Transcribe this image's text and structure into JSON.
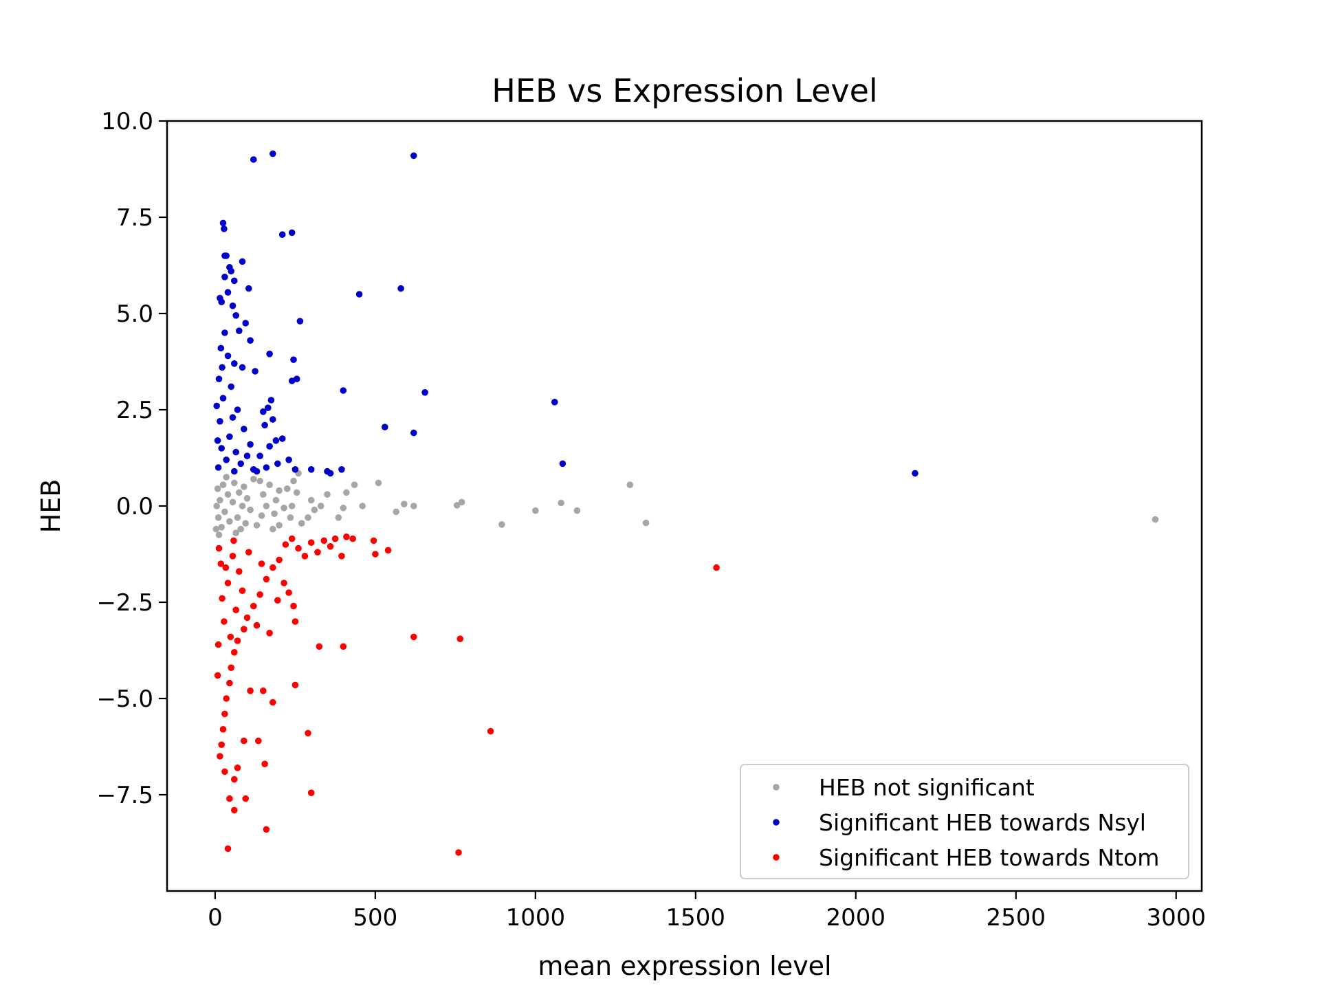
{
  "chart_data": {
    "type": "scatter",
    "title": "HEB vs Expression Level",
    "xlabel": "mean expression level",
    "ylabel": "HEB",
    "xlim": [
      -150,
      3080
    ],
    "ylim": [
      -10.0,
      10.0
    ],
    "xticks": [
      0,
      500,
      1000,
      1500,
      2000,
      2500,
      3000
    ],
    "xtick_labels": [
      "0",
      "500",
      "1000",
      "1500",
      "2000",
      "2500",
      "3000"
    ],
    "yticks": [
      -7.5,
      -5.0,
      -2.5,
      0.0,
      2.5,
      5.0,
      7.5,
      10.0
    ],
    "ytick_labels": [
      "−7.5",
      "−5.0",
      "−2.5",
      "0.0",
      "2.5",
      "5.0",
      "7.5",
      "10.0"
    ],
    "grid": false,
    "legend_position": "lower-right",
    "series": [
      {
        "name": "HEB not significant",
        "color": "#a6a6a6",
        "points": [
          [
            1295,
            0.55
          ],
          [
            1080,
            0.08
          ],
          [
            1000,
            -0.12
          ],
          [
            1130,
            -0.12
          ],
          [
            895,
            -0.48
          ],
          [
            1345,
            -0.44
          ],
          [
            2935,
            -0.35
          ],
          [
            770,
            0.1
          ],
          [
            755,
            0.02
          ],
          [
            620,
            0.0
          ],
          [
            590,
            0.05
          ],
          [
            565,
            -0.15
          ],
          [
            510,
            0.6
          ],
          [
            435,
            0.55
          ],
          [
            460,
            0.0
          ],
          [
            410,
            0.35
          ],
          [
            400,
            -0.05
          ],
          [
            385,
            -0.3
          ],
          [
            350,
            0.3
          ],
          [
            330,
            0.0
          ],
          [
            310,
            -0.1
          ],
          [
            290,
            -0.3
          ],
          [
            260,
            0.85
          ],
          [
            255,
            0.35
          ],
          [
            245,
            0.65
          ],
          [
            240,
            0.0
          ],
          [
            235,
            -0.3
          ],
          [
            225,
            0.45
          ],
          [
            215,
            -0.05
          ],
          [
            200,
            0.4
          ],
          [
            190,
            0.15
          ],
          [
            185,
            -0.2
          ],
          [
            170,
            0.55
          ],
          [
            160,
            0.0
          ],
          [
            150,
            0.3
          ],
          [
            145,
            -0.25
          ],
          [
            130,
            -0.5
          ],
          [
            120,
            0.7
          ],
          [
            110,
            -0.1
          ],
          [
            100,
            0.2
          ],
          [
            95,
            -0.45
          ],
          [
            90,
            0.5
          ],
          [
            85,
            0.0
          ],
          [
            80,
            -0.6
          ],
          [
            75,
            0.35
          ],
          [
            70,
            -0.3
          ],
          [
            60,
            0.6
          ],
          [
            55,
            0.1
          ],
          [
            45,
            -0.4
          ],
          [
            40,
            0.3
          ],
          [
            30,
            -0.15
          ],
          [
            25,
            0.55
          ],
          [
            20,
            -0.55
          ],
          [
            15,
            0.15
          ],
          [
            10,
            -0.3
          ],
          [
            8,
            0.45
          ],
          [
            5,
            0.0
          ],
          [
            3,
            -0.6
          ],
          [
            200,
            -0.5
          ],
          [
            300,
            0.15
          ],
          [
            270,
            -0.45
          ],
          [
            180,
            -0.6
          ],
          [
            140,
            0.65
          ],
          [
            65,
            -0.7
          ],
          [
            35,
            0.75
          ],
          [
            12,
            -0.75
          ]
        ]
      },
      {
        "name": "Significant HEB towards Nsyl",
        "color": "#0000c8",
        "points": [
          [
            180,
            9.15
          ],
          [
            120,
            9.0
          ],
          [
            620,
            9.1
          ],
          [
            25,
            7.35
          ],
          [
            28,
            7.2
          ],
          [
            240,
            7.1
          ],
          [
            210,
            7.05
          ],
          [
            30,
            6.5
          ],
          [
            35,
            6.5
          ],
          [
            45,
            6.2
          ],
          [
            50,
            6.1
          ],
          [
            85,
            6.35
          ],
          [
            30,
            5.95
          ],
          [
            60,
            5.85
          ],
          [
            105,
            5.65
          ],
          [
            580,
            5.65
          ],
          [
            450,
            5.5
          ],
          [
            15,
            5.4
          ],
          [
            20,
            5.3
          ],
          [
            40,
            5.55
          ],
          [
            55,
            5.2
          ],
          [
            65,
            4.95
          ],
          [
            265,
            4.8
          ],
          [
            95,
            4.75
          ],
          [
            75,
            4.55
          ],
          [
            110,
            4.3
          ],
          [
            170,
            3.95
          ],
          [
            245,
            3.8
          ],
          [
            60,
            3.7
          ],
          [
            85,
            3.6
          ],
          [
            125,
            3.5
          ],
          [
            255,
            3.3
          ],
          [
            240,
            3.25
          ],
          [
            400,
            3.0
          ],
          [
            655,
            2.95
          ],
          [
            1060,
            2.7
          ],
          [
            175,
            2.75
          ],
          [
            165,
            2.55
          ],
          [
            150,
            2.45
          ],
          [
            180,
            2.25
          ],
          [
            155,
            2.1
          ],
          [
            530,
            2.05
          ],
          [
            620,
            1.9
          ],
          [
            210,
            1.75
          ],
          [
            190,
            1.7
          ],
          [
            170,
            1.55
          ],
          [
            1085,
            1.1
          ],
          [
            300,
            0.95
          ],
          [
            350,
            0.9
          ],
          [
            395,
            0.95
          ],
          [
            360,
            0.85
          ],
          [
            2185,
            0.85
          ],
          [
            230,
            1.2
          ],
          [
            250,
            0.95
          ],
          [
            195,
            1.1
          ],
          [
            140,
            1.3
          ],
          [
            110,
            1.6
          ],
          [
            90,
            2.0
          ],
          [
            70,
            2.5
          ],
          [
            50,
            3.1
          ],
          [
            40,
            3.9
          ],
          [
            30,
            4.5
          ],
          [
            20,
            1.5
          ],
          [
            15,
            2.2
          ],
          [
            10,
            1.0
          ],
          [
            25,
            2.8
          ],
          [
            35,
            1.2
          ],
          [
            45,
            1.8
          ],
          [
            55,
            2.3
          ],
          [
            65,
            1.4
          ],
          [
            80,
            1.1
          ],
          [
            100,
            1.3
          ],
          [
            120,
            0.95
          ],
          [
            12,
            3.3
          ],
          [
            18,
            4.1
          ],
          [
            22,
            3.6
          ],
          [
            8,
            1.7
          ],
          [
            5,
            2.6
          ],
          [
            60,
            0.9
          ],
          [
            130,
            0.9
          ],
          [
            160,
            1.0
          ]
        ]
      },
      {
        "name": "Significant HEB towards Ntom",
        "color": "#ff0000",
        "points": [
          [
            1565,
            -1.6
          ],
          [
            495,
            -0.9
          ],
          [
            500,
            -1.25
          ],
          [
            540,
            -1.15
          ],
          [
            430,
            -0.85
          ],
          [
            410,
            -0.8
          ],
          [
            395,
            -1.3
          ],
          [
            375,
            -0.85
          ],
          [
            360,
            -1.05
          ],
          [
            340,
            -0.9
          ],
          [
            320,
            -1.2
          ],
          [
            300,
            -0.95
          ],
          [
            280,
            -1.3
          ],
          [
            260,
            -1.1
          ],
          [
            240,
            -0.85
          ],
          [
            220,
            -1.0
          ],
          [
            200,
            -1.4
          ],
          [
            180,
            -1.6
          ],
          [
            160,
            -1.9
          ],
          [
            140,
            -2.3
          ],
          [
            120,
            -2.6
          ],
          [
            100,
            -2.9
          ],
          [
            90,
            -3.2
          ],
          [
            70,
            -3.5
          ],
          [
            60,
            -3.8
          ],
          [
            50,
            -4.2
          ],
          [
            45,
            -4.6
          ],
          [
            35,
            -5.0
          ],
          [
            30,
            -5.4
          ],
          [
            25,
            -5.8
          ],
          [
            20,
            -6.2
          ],
          [
            15,
            -6.5
          ],
          [
            620,
            -3.4
          ],
          [
            765,
            -3.45
          ],
          [
            325,
            -3.65
          ],
          [
            400,
            -3.65
          ],
          [
            250,
            -4.65
          ],
          [
            150,
            -4.8
          ],
          [
            110,
            -4.8
          ],
          [
            180,
            -5.1
          ],
          [
            290,
            -5.9
          ],
          [
            860,
            -5.85
          ],
          [
            135,
            -6.1
          ],
          [
            90,
            -6.1
          ],
          [
            155,
            -6.7
          ],
          [
            70,
            -6.8
          ],
          [
            30,
            -6.9
          ],
          [
            60,
            -7.1
          ],
          [
            300,
            -7.45
          ],
          [
            45,
            -7.6
          ],
          [
            95,
            -7.6
          ],
          [
            60,
            -7.9
          ],
          [
            160,
            -8.4
          ],
          [
            40,
            -8.9
          ],
          [
            760,
            -9.0
          ],
          [
            245,
            -2.6
          ],
          [
            230,
            -2.25
          ],
          [
            215,
            -2.0
          ],
          [
            195,
            -2.45
          ],
          [
            250,
            -3.0
          ],
          [
            170,
            -3.3
          ],
          [
            130,
            -3.1
          ],
          [
            85,
            -2.2
          ],
          [
            75,
            -1.7
          ],
          [
            65,
            -2.7
          ],
          [
            55,
            -1.3
          ],
          [
            40,
            -2.0
          ],
          [
            28,
            -3.0
          ],
          [
            18,
            -1.5
          ],
          [
            10,
            -3.6
          ],
          [
            8,
            -4.4
          ],
          [
            12,
            -1.1
          ],
          [
            22,
            -2.4
          ],
          [
            33,
            -1.6
          ],
          [
            48,
            -3.4
          ],
          [
            58,
            -0.9
          ],
          [
            105,
            -1.2
          ],
          [
            145,
            -1.5
          ]
        ]
      }
    ]
  }
}
